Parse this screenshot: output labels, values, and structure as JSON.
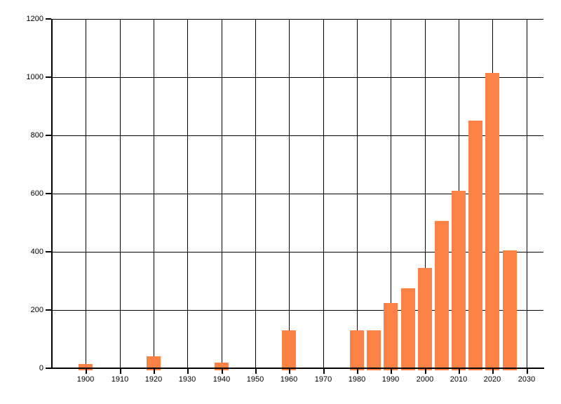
{
  "chart_data": {
    "type": "bar",
    "title": "",
    "xlabel": "",
    "ylabel": "",
    "legend": "none",
    "grid": true,
    "background_color": "#ffffff",
    "grid_color": "#000000",
    "axis_color": "#000000",
    "bar_color": "#fc8144",
    "x": [
      1900,
      1920,
      1940,
      1960,
      1980,
      1985,
      1990,
      1995,
      2000,
      2005,
      2010,
      2015,
      2020,
      2025
    ],
    "values": [
      15,
      40,
      20,
      130,
      130,
      130,
      225,
      275,
      345,
      505,
      610,
      850,
      1015,
      405
    ],
    "x_axis": {
      "min": 1890,
      "max": 2035,
      "tick_step": 10,
      "tick_years": [
        1900,
        1910,
        1920,
        1930,
        1940,
        1950,
        1960,
        1970,
        1980,
        1990,
        2000,
        2010,
        2020,
        2030
      ],
      "tick_labels": [
        "1900",
        "1910",
        "1920",
        "1930",
        "1940",
        "1950",
        "1960",
        "1970",
        "1980",
        "1990",
        "2000",
        "2010",
        "2020",
        "2030"
      ]
    },
    "y_axis": {
      "min": 0,
      "max": 1200,
      "tick_step": 200,
      "tick_values": [
        0,
        200,
        400,
        600,
        800,
        1000,
        1200
      ],
      "tick_labels": [
        "0",
        "200",
        "400",
        "600",
        "800",
        "1000",
        "1200"
      ]
    }
  }
}
